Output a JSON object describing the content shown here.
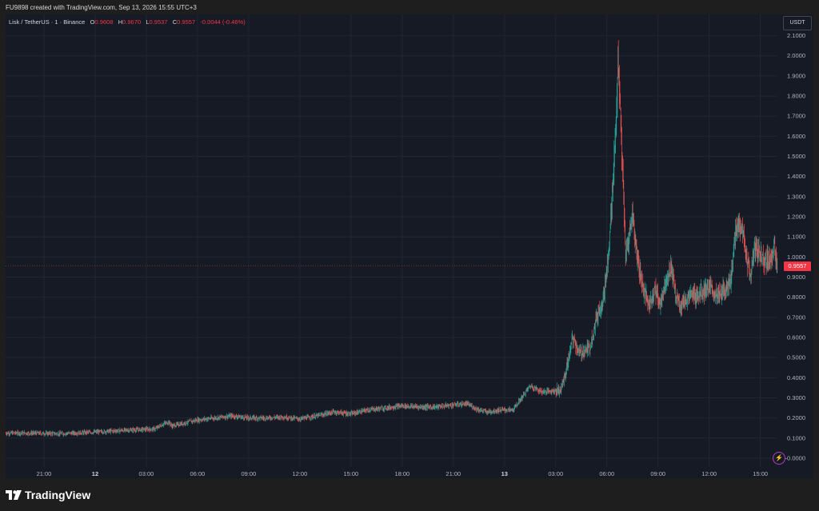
{
  "header": {
    "text": "FU9898 created with TradingView.com, Sep 13, 2026 15:55 UTC+3"
  },
  "legend": {
    "symbol": "Lisk / TetherUS · 1 · Binance",
    "o_label": "O",
    "o_value": "0.9608",
    "h_label": "H",
    "h_value": "0.9670",
    "l_label": "L",
    "l_value": "0.9537",
    "c_label": "C",
    "c_value": "0.9557",
    "change": "-0.0044 (-0.46%)"
  },
  "currency": "USDT",
  "last_price": "0.9557",
  "footer": {
    "logo_text": "TradingView"
  },
  "icons": {
    "bolt": "lightning-icon",
    "logo": "tradingview-logo-icon"
  },
  "colors": {
    "up": "#26a69a",
    "down": "#ef5350",
    "background": "#161a25",
    "last_price": "#f23645"
  },
  "chart_data": {
    "type": "candlestick",
    "symbol": "Lisk / TetherUS",
    "interval": "1",
    "exchange": "Binance",
    "y_ticks": [
      "2.1000",
      "2.0000",
      "1.9000",
      "1.8000",
      "1.7000",
      "1.6000",
      "1.5000",
      "1.4000",
      "1.3000",
      "1.2000",
      "1.1000",
      "1.0000",
      "0.9000",
      "0.8000",
      "0.7000",
      "0.6000",
      "0.5000",
      "0.4000",
      "0.3000",
      "0.2000",
      "0.1000",
      "-0.0000"
    ],
    "ylim": [
      -0.02,
      2.15
    ],
    "x_ticks": [
      {
        "label": "21:00",
        "t": 21,
        "bold": false
      },
      {
        "label": "12",
        "t": 24,
        "bold": true
      },
      {
        "label": "03:00",
        "t": 27,
        "bold": false
      },
      {
        "label": "06:00",
        "t": 30,
        "bold": false
      },
      {
        "label": "09:00",
        "t": 33,
        "bold": false
      },
      {
        "label": "12:00",
        "t": 36,
        "bold": false
      },
      {
        "label": "15:00",
        "t": 39,
        "bold": false
      },
      {
        "label": "18:00",
        "t": 42,
        "bold": false
      },
      {
        "label": "21:00",
        "t": 45,
        "bold": false
      },
      {
        "label": "13",
        "t": 48,
        "bold": true
      },
      {
        "label": "03:00",
        "t": 51,
        "bold": false
      },
      {
        "label": "06:00",
        "t": 54,
        "bold": false
      },
      {
        "label": "09:00",
        "t": 57,
        "bold": false
      },
      {
        "label": "12:00",
        "t": 60,
        "bold": false
      },
      {
        "label": "15:00",
        "t": 63,
        "bold": false
      }
    ],
    "x_range_hours": [
      18.75,
      64.0
    ],
    "price_path": [
      [
        18.75,
        0.125
      ],
      [
        20,
        0.125
      ],
      [
        22,
        0.122
      ],
      [
        24,
        0.13
      ],
      [
        26,
        0.14
      ],
      [
        27.5,
        0.145
      ],
      [
        28,
        0.17
      ],
      [
        28.3,
        0.18
      ],
      [
        28.5,
        0.16
      ],
      [
        29,
        0.17
      ],
      [
        30,
        0.19
      ],
      [
        31,
        0.2
      ],
      [
        32,
        0.21
      ],
      [
        33,
        0.2
      ],
      [
        34,
        0.2
      ],
      [
        35,
        0.205
      ],
      [
        36,
        0.195
      ],
      [
        37,
        0.21
      ],
      [
        38,
        0.23
      ],
      [
        39,
        0.22
      ],
      [
        40,
        0.24
      ],
      [
        41,
        0.25
      ],
      [
        42,
        0.26
      ],
      [
        43,
        0.255
      ],
      [
        44,
        0.255
      ],
      [
        45,
        0.265
      ],
      [
        45.8,
        0.27
      ],
      [
        46.5,
        0.24
      ],
      [
        47,
        0.23
      ],
      [
        47.8,
        0.24
      ],
      [
        48.5,
        0.24
      ],
      [
        49,
        0.3
      ],
      [
        49.5,
        0.36
      ],
      [
        50.2,
        0.33
      ],
      [
        51.3,
        0.34
      ],
      [
        51.6,
        0.43
      ],
      [
        52,
        0.6
      ],
      [
        52.4,
        0.52
      ],
      [
        53,
        0.55
      ],
      [
        53.4,
        0.7
      ],
      [
        53.8,
        0.8
      ],
      [
        54.1,
        1.0
      ],
      [
        54.3,
        1.3
      ],
      [
        54.5,
        1.6
      ],
      [
        54.65,
        1.95
      ],
      [
        54.8,
        1.7
      ],
      [
        54.95,
        1.35
      ],
      [
        55.1,
        1.0
      ],
      [
        55.3,
        1.1
      ],
      [
        55.5,
        1.22
      ],
      [
        55.7,
        1.05
      ],
      [
        56,
        0.9
      ],
      [
        56.2,
        0.82
      ],
      [
        56.5,
        0.76
      ],
      [
        56.8,
        0.85
      ],
      [
        57.1,
        0.76
      ],
      [
        57.5,
        0.9
      ],
      [
        57.8,
        0.95
      ],
      [
        58,
        0.82
      ],
      [
        58.3,
        0.76
      ],
      [
        58.8,
        0.8
      ],
      [
        59.4,
        0.82
      ],
      [
        60,
        0.85
      ],
      [
        60.5,
        0.8
      ],
      [
        61,
        0.85
      ],
      [
        61.3,
        0.9
      ],
      [
        61.5,
        1.1
      ],
      [
        61.8,
        1.18
      ],
      [
        62,
        1.1
      ],
      [
        62.4,
        0.9
      ],
      [
        62.7,
        1.05
      ],
      [
        63.1,
        1.0
      ],
      [
        63.5,
        0.98
      ],
      [
        63.8,
        1.05
      ],
      [
        64.0,
        0.956
      ]
    ],
    "last_price": 0.9557
  }
}
